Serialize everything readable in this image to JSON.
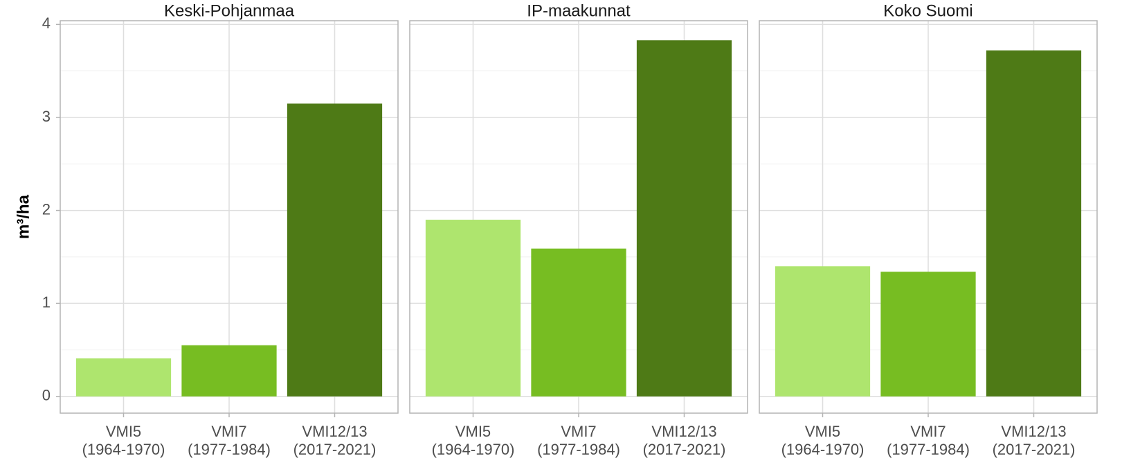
{
  "chart_data": [
    {
      "type": "bar",
      "title": "Keski-Pohjanmaa",
      "ylabel": "m³/ha",
      "categories": [
        [
          "VMI5",
          "(1964-1970)"
        ],
        [
          "VMI7",
          "(1977-1984)"
        ],
        [
          "VMI12/13",
          "(2017-2021)"
        ]
      ],
      "values": [
        0.41,
        0.55,
        3.15
      ],
      "colors": [
        "#aee56e",
        "#77bd22",
        "#4e7a16"
      ],
      "ylim": [
        -0.18,
        4.04
      ],
      "yticks": [
        0,
        1,
        2,
        3,
        4
      ],
      "grid": true
    },
    {
      "type": "bar",
      "title": "IP-maakunnat",
      "categories": [
        [
          "VMI5",
          "(1964-1970)"
        ],
        [
          "VMI7",
          "(1977-1984)"
        ],
        [
          "VMI12/13",
          "(2017-2021)"
        ]
      ],
      "values": [
        1.9,
        1.59,
        3.83
      ],
      "colors": [
        "#aee56e",
        "#77bd22",
        "#4e7a16"
      ],
      "ylim": [
        -0.18,
        4.04
      ],
      "yticks": [
        0,
        1,
        2,
        3,
        4
      ],
      "grid": true
    },
    {
      "type": "bar",
      "title": "Koko Suomi",
      "categories": [
        [
          "VMI5",
          "(1964-1970)"
        ],
        [
          "VMI7",
          "(1977-1984)"
        ],
        [
          "VMI12/13",
          "(2017-2021)"
        ]
      ],
      "values": [
        1.4,
        1.34,
        3.72
      ],
      "colors": [
        "#aee56e",
        "#77bd22",
        "#4e7a16"
      ],
      "ylim": [
        -0.18,
        4.04
      ],
      "yticks": [
        0,
        1,
        2,
        3,
        4
      ],
      "grid": true
    }
  ]
}
